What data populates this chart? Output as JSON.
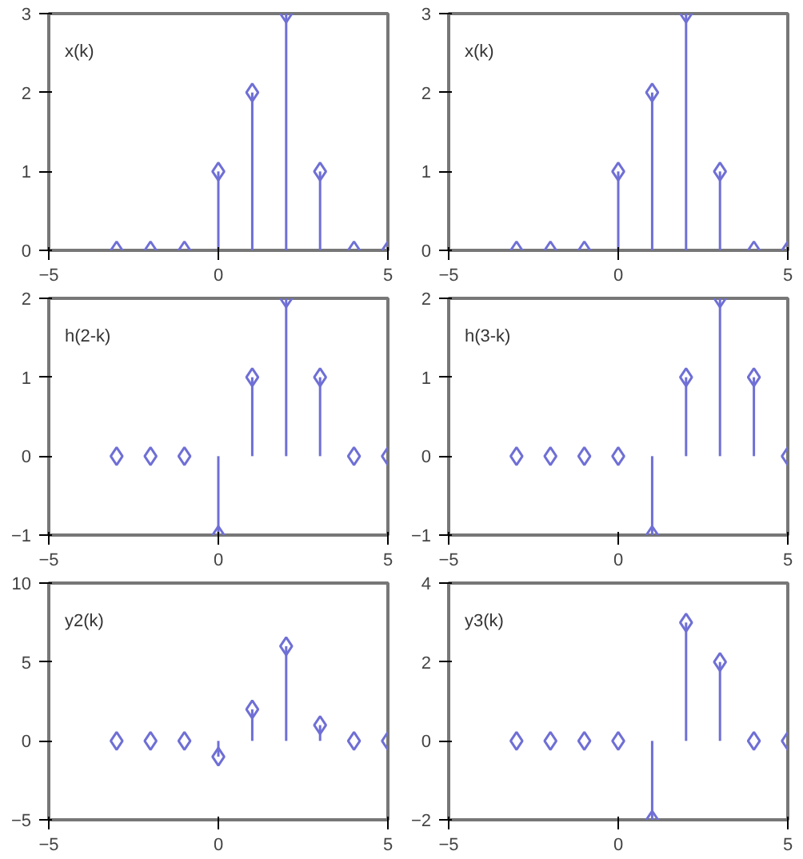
{
  "chart_data": [
    {
      "type": "lollipop",
      "title": "x(k)",
      "x": [
        -3,
        -2,
        -1,
        0,
        1,
        2,
        3,
        4,
        5
      ],
      "values": [
        0,
        0,
        0,
        1,
        2,
        3,
        1,
        0,
        0
      ],
      "color": "#6f6fd6",
      "marker": "diamond",
      "xlim": [
        -5,
        5
      ],
      "xticks": [
        -5,
        0,
        5
      ],
      "ylim": [
        0,
        3
      ],
      "yticks": [
        0,
        1,
        2,
        3
      ]
    },
    {
      "type": "lollipop",
      "title": "x(k)",
      "x": [
        -3,
        -2,
        -1,
        0,
        1,
        2,
        3,
        4,
        5
      ],
      "values": [
        0,
        0,
        0,
        1,
        2,
        3,
        1,
        0,
        0
      ],
      "color": "#6f6fd6",
      "marker": "diamond",
      "xlim": [
        -5,
        5
      ],
      "xticks": [
        -5,
        0,
        5
      ],
      "ylim": [
        0,
        3
      ],
      "yticks": [
        0,
        1,
        2,
        3
      ]
    },
    {
      "type": "lollipop",
      "title": "h(2-k)",
      "x": [
        -3,
        -2,
        -1,
        0,
        1,
        2,
        3,
        4,
        5
      ],
      "values": [
        0,
        0,
        0,
        -1,
        1,
        2,
        1,
        0,
        0
      ],
      "color": "#6f6fd6",
      "marker": "diamond",
      "xlim": [
        -5,
        5
      ],
      "xticks": [
        -5,
        0,
        5
      ],
      "ylim": [
        -1,
        2
      ],
      "yticks": [
        -1,
        0,
        1,
        2
      ]
    },
    {
      "type": "lollipop",
      "title": "h(3-k)",
      "x": [
        -3,
        -2,
        -1,
        0,
        1,
        2,
        3,
        4,
        5
      ],
      "values": [
        0,
        0,
        0,
        0,
        -1,
        1,
        2,
        1,
        0
      ],
      "color": "#6f6fd6",
      "marker": "diamond",
      "xlim": [
        -5,
        5
      ],
      "xticks": [
        -5,
        0,
        5
      ],
      "ylim": [
        -1,
        2
      ],
      "yticks": [
        -1,
        0,
        1,
        2
      ]
    },
    {
      "type": "lollipop",
      "title": "y2(k)",
      "x": [
        -3,
        -2,
        -1,
        0,
        1,
        2,
        3,
        4,
        5
      ],
      "values": [
        0,
        0,
        0,
        -1,
        2,
        6,
        1,
        0,
        0
      ],
      "color": "#6f6fd6",
      "marker": "diamond",
      "xlim": [
        -5,
        5
      ],
      "xticks": [
        -5,
        0,
        5
      ],
      "ylim": [
        -5,
        10
      ],
      "yticks": [
        -5,
        0,
        5,
        10
      ]
    },
    {
      "type": "lollipop",
      "title": "y3(k)",
      "x": [
        -3,
        -2,
        -1,
        0,
        1,
        2,
        3,
        4,
        5
      ],
      "values": [
        0,
        0,
        0,
        0,
        -2,
        3,
        2,
        0,
        0
      ],
      "color": "#6f6fd6",
      "marker": "diamond",
      "xlim": [
        -5,
        5
      ],
      "xticks": [
        -5,
        0,
        5
      ],
      "ylim": [
        -2,
        4
      ],
      "yticks": [
        -2,
        0,
        2,
        4
      ]
    }
  ]
}
